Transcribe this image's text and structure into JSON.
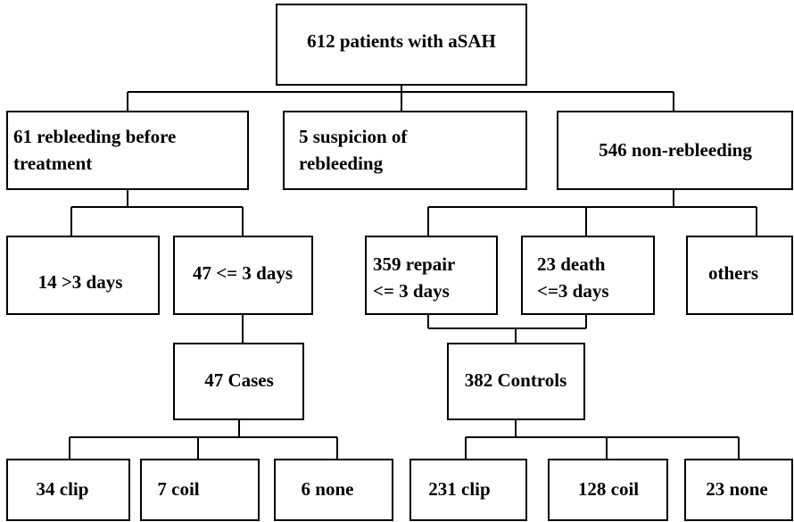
{
  "nodes": [
    {
      "lines": [
        "612 patients with aSAH"
      ]
    },
    {
      "lines": [
        "61 rebleeding before",
        "treatment"
      ]
    },
    {
      "lines": [
        "5 suspicion of",
        "rebleeding"
      ]
    },
    {
      "lines": [
        "546 non-rebleeding"
      ]
    },
    {
      "lines": [
        "14 >3 days"
      ]
    },
    {
      "lines": [
        "47 <= 3 days"
      ]
    },
    {
      "lines": [
        "359 repair",
        "<= 3 days"
      ]
    },
    {
      "lines": [
        "23 death",
        "<=3 days"
      ]
    },
    {
      "lines": [
        "others"
      ]
    },
    {
      "lines": [
        "47 Cases"
      ]
    },
    {
      "lines": [
        "382 Controls"
      ]
    },
    {
      "lines": [
        "34 clip"
      ]
    },
    {
      "lines": [
        "7 coil"
      ]
    },
    {
      "lines": [
        "6 none"
      ]
    },
    {
      "lines": [
        "231 clip"
      ]
    },
    {
      "lines": [
        "128 coil"
      ]
    },
    {
      "lines": [
        "23 none"
      ]
    }
  ]
}
